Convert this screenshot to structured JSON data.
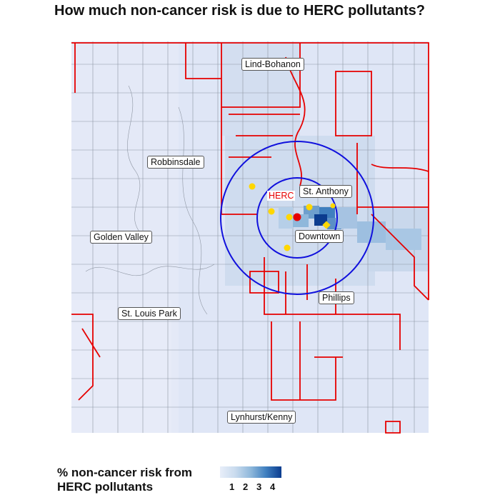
{
  "title": "How much non-cancer risk is due to HERC pollutants?",
  "labels": {
    "lind_bohanon": "Lind-Bohanon",
    "robbinsdale": "Robbinsdale",
    "st_anthony": "St. Anthony",
    "herc": "HERC",
    "golden_valley": "Golden Valley",
    "downtown": "Downtown",
    "phillips": "Phillips",
    "st_louis_park": "St. Louis Park",
    "lynhurst_kenny": "Lynhurst/Kenny"
  },
  "legend": {
    "title_line1": "% non-cancer risk from",
    "title_line2": "HERC pollutants",
    "ticks": [
      "1",
      "2",
      "3",
      "4"
    ]
  },
  "colors": {
    "boundary_red": "#e60000",
    "circle_blue": "#1010dd",
    "herc_point": "#e60000",
    "other_facilities": "#ffd700",
    "tract_light": "#dfe6f6",
    "tract_dark": "#0b3c8f"
  }
}
